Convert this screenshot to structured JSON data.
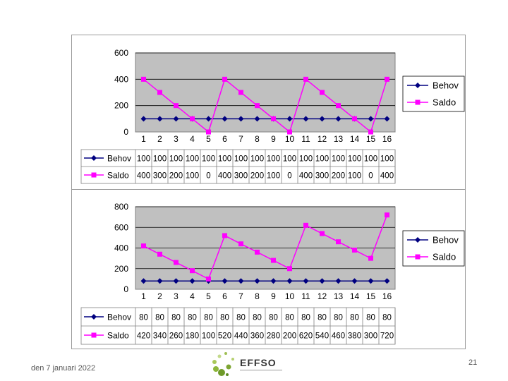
{
  "chart_data": [
    {
      "type": "line",
      "categories": [
        "1",
        "2",
        "3",
        "4",
        "5",
        "6",
        "7",
        "8",
        "9",
        "10",
        "11",
        "12",
        "13",
        "14",
        "15",
        "16"
      ],
      "series": [
        {
          "name": "Behov",
          "values": [
            100,
            100,
            100,
            100,
            100,
            100,
            100,
            100,
            100,
            100,
            100,
            100,
            100,
            100,
            100,
            100
          ],
          "color": "#000080"
        },
        {
          "name": "Saldo",
          "values": [
            400,
            300,
            200,
            100,
            0,
            400,
            300,
            200,
            100,
            0,
            400,
            300,
            200,
            100,
            0,
            400
          ],
          "color": "#ff00ff"
        }
      ],
      "ylim": [
        0,
        600
      ],
      "yticks": [
        "0",
        "200",
        "400",
        "600"
      ],
      "grid": "horizontal",
      "legend": "right",
      "data_table": true,
      "plot_background": "#c0c0c0"
    },
    {
      "type": "line",
      "categories": [
        "1",
        "2",
        "3",
        "4",
        "5",
        "6",
        "7",
        "8",
        "9",
        "10",
        "11",
        "12",
        "13",
        "14",
        "15",
        "16"
      ],
      "series": [
        {
          "name": "Behov",
          "values": [
            80,
            80,
            80,
            80,
            80,
            80,
            80,
            80,
            80,
            80,
            80,
            80,
            80,
            80,
            80,
            80
          ],
          "color": "#000080"
        },
        {
          "name": "Saldo",
          "values": [
            420,
            340,
            260,
            180,
            100,
            520,
            440,
            360,
            280,
            200,
            620,
            540,
            460,
            380,
            300,
            720
          ],
          "color": "#ff00ff"
        }
      ],
      "ylim": [
        0,
        800
      ],
      "yticks": [
        "0",
        "200",
        "400",
        "600",
        "800"
      ],
      "grid": "horizontal",
      "legend": "right",
      "data_table": true,
      "plot_background": "#c0c0c0"
    }
  ],
  "footer": {
    "date": "den 7 januari 2022",
    "page_number": "21",
    "logo_text": "EFFSO"
  }
}
